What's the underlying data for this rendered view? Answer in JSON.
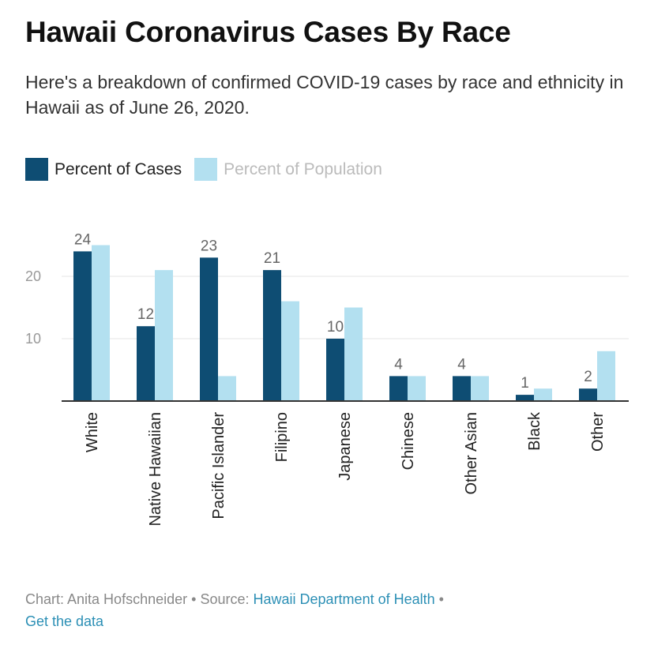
{
  "header": {
    "title": "Hawaii Coronavirus Cases By Race",
    "subtitle": "Here's a breakdown of confirmed COVID-19 cases by race and ethnicity in Hawaii as of June 26, 2020."
  },
  "legend": {
    "cases_label": "Percent of Cases",
    "population_label": "Percent of Population"
  },
  "colors": {
    "cases": "#0e4d73",
    "population": "#b3e0f0",
    "gridline": "#e6e6e6",
    "baseline": "#333333",
    "link": "#2b8fb5"
  },
  "footer": {
    "chart_by": "Chart: Anita Hofschneider",
    "source_prefix": "Source:",
    "source_link": "Hawaii Department of Health",
    "get_data": "Get the data"
  },
  "chart_data": {
    "type": "bar",
    "title": "Hawaii Coronavirus Cases By Race",
    "xlabel": "",
    "ylabel": "",
    "ylim": [
      0,
      25
    ],
    "yticks": [
      10,
      20
    ],
    "grid": true,
    "legend_position": "top-left",
    "categories": [
      "White",
      "Native Hawaiian",
      "Pacific Islander",
      "Filipino",
      "Japanese",
      "Chinese",
      "Other Asian",
      "Black",
      "Other"
    ],
    "series": [
      {
        "name": "Percent of Cases",
        "values": [
          24,
          12,
          23,
          21,
          10,
          4,
          4,
          1,
          2
        ],
        "labeled": true
      },
      {
        "name": "Percent of Population",
        "values": [
          25,
          21,
          4,
          16,
          15,
          4,
          4,
          2,
          8
        ],
        "labeled": false
      }
    ]
  }
}
